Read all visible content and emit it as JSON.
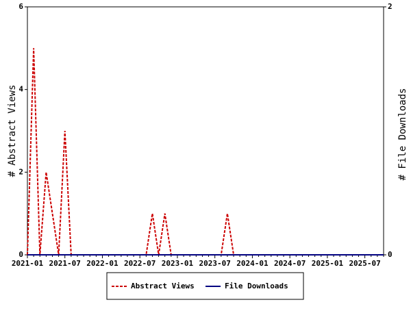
{
  "chart_data": {
    "type": "line",
    "categories": [
      "2021-01",
      null,
      null,
      null,
      null,
      null,
      "2021-07",
      null,
      null,
      null,
      null,
      null,
      "2022-01",
      null,
      null,
      null,
      null,
      null,
      "2022-07",
      null,
      null,
      null,
      null,
      null,
      "2023-01",
      null,
      null,
      null,
      null,
      null,
      "2023-07",
      null,
      null,
      null,
      null,
      null,
      "2024-01",
      null,
      null,
      null,
      null,
      null,
      "2024-07",
      null,
      null,
      null,
      null,
      null,
      "2025-01",
      null,
      null,
      null,
      null,
      null,
      "2025-07",
      null,
      null,
      null
    ],
    "series": [
      {
        "name": "Abstract Views",
        "color": "#cc0000",
        "dashed": true,
        "values": [
          0,
          5,
          0,
          2,
          1,
          0,
          3,
          0,
          0,
          0,
          0,
          0,
          0,
          0,
          0,
          0,
          0,
          0,
          0,
          0,
          1,
          0,
          1,
          0,
          0,
          0,
          0,
          0,
          0,
          0,
          0,
          0,
          1,
          0,
          0,
          0,
          0,
          0,
          0,
          0,
          0,
          0,
          0,
          0,
          0,
          0,
          0,
          0,
          0,
          0,
          0,
          0,
          0,
          0,
          0,
          0,
          0,
          0
        ]
      },
      {
        "name": "File Downloads",
        "color": "#000080",
        "axis": "y2",
        "values": [
          0,
          0,
          0,
          0,
          0,
          0,
          0,
          0,
          0,
          0,
          0,
          0,
          0,
          0,
          0,
          0,
          0,
          0,
          0,
          0,
          0,
          0,
          0,
          0,
          0,
          0,
          0,
          0,
          0,
          0,
          0,
          0,
          0,
          0,
          0,
          0,
          0,
          0,
          0,
          0,
          0,
          0,
          0,
          0,
          0,
          0,
          0,
          0,
          0,
          0,
          0,
          0,
          0,
          0,
          0,
          0,
          0,
          0
        ]
      }
    ],
    "y_label": "# Abstract Views",
    "y2_label": "# File Downloads",
    "ylim": [
      0,
      6
    ],
    "yticks": [
      0,
      2,
      4,
      6
    ],
    "y2lim": [
      0,
      2
    ],
    "y2ticks": [
      0,
      2
    ]
  }
}
